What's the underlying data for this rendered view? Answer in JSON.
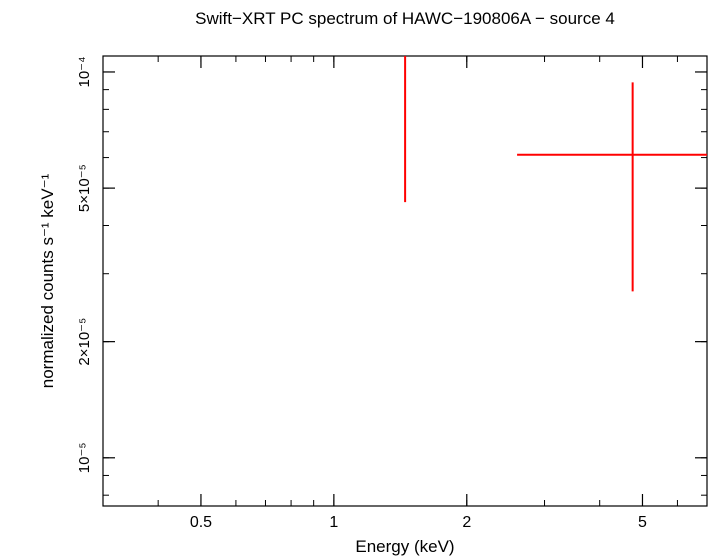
{
  "chart_data": {
    "type": "scatter",
    "title": "Swift−XRT PC spectrum of HAWC−190806A − source 4",
    "xlabel": "Energy (keV)",
    "ylabel": "normalized counts s⁻¹ keV⁻¹",
    "x_scale": "log",
    "y_scale": "log",
    "xlim": [
      0.3,
      7.0
    ],
    "ylim": [
      7.5e-06,
      0.00011
    ],
    "x_ticks": [
      {
        "value": 0.5,
        "label": "0.5"
      },
      {
        "value": 1,
        "label": "1"
      },
      {
        "value": 2,
        "label": "2"
      },
      {
        "value": 5,
        "label": "5"
      }
    ],
    "y_ticks": [
      {
        "value": 0.0001,
        "label": "10⁻⁴"
      },
      {
        "value": 5e-05,
        "label": "5×10⁻⁵"
      },
      {
        "value": 2e-05,
        "label": "2×10⁻⁵"
      },
      {
        "value": 1e-05,
        "label": "10⁻⁵"
      }
    ],
    "series": [
      {
        "color": "#ff0000",
        "points": [
          {
            "x": 1.45,
            "xerr_low": 1.45,
            "xerr_high": 1.45,
            "y": 9e-05,
            "yerr_low": 4.6e-05,
            "yerr_high": 0.00011
          },
          {
            "x": 4.75,
            "xerr_low": 2.6,
            "xerr_high": 7.0,
            "y": 6.1e-05,
            "yerr_low": 2.7e-05,
            "yerr_high": 9.4e-05
          }
        ]
      }
    ]
  }
}
